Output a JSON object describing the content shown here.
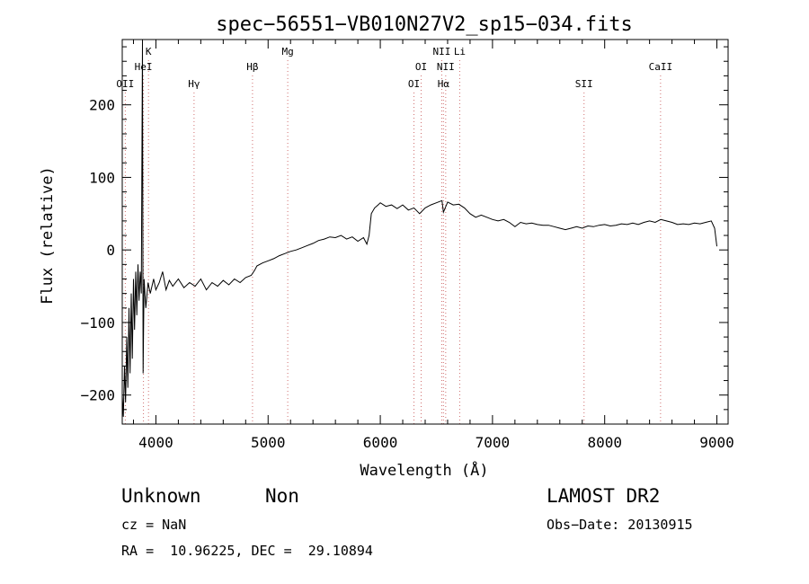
{
  "chart_data": {
    "type": "line",
    "title": "spec−56551−VB010N27V2_sp15−034.fits",
    "xlabel": "Wavelength (Å)",
    "ylabel": "Flux (relative)",
    "xlim": [
      3700,
      9100
    ],
    "ylim": [
      -240,
      290
    ],
    "xticks": [
      {
        "value": 4000,
        "label": "4000"
      },
      {
        "value": 5000,
        "label": "5000"
      },
      {
        "value": 6000,
        "label": "6000"
      },
      {
        "value": 7000,
        "label": "7000"
      },
      {
        "value": 8000,
        "label": "8000"
      },
      {
        "value": 9000,
        "label": "9000"
      }
    ],
    "yticks": [
      {
        "value": 200,
        "label": "200"
      },
      {
        "value": 100,
        "label": "100"
      },
      {
        "value": 0,
        "label": "0"
      },
      {
        "value": -100,
        "label": "−100"
      },
      {
        "value": -200,
        "label": "−200"
      }
    ],
    "grid": false,
    "line_color": "#000000",
    "marker_color": "#d07070",
    "lines": [
      {
        "label": "OII",
        "x": 3727,
        "row": 3
      },
      {
        "label": "K",
        "x": 3934,
        "row": 0
      },
      {
        "label": "HeI",
        "x": 3889,
        "row": 2
      },
      {
        "label": "Hγ",
        "x": 4340,
        "row": 3
      },
      {
        "label": "Hβ",
        "x": 4861,
        "row": 2
      },
      {
        "label": "Mg",
        "x": 5175,
        "row": 0
      },
      {
        "label": "OI",
        "x": 6300,
        "row": 3
      },
      {
        "label": "OI",
        "x": 6364,
        "row": 2
      },
      {
        "label": "NII",
        "x": 6548,
        "row": 0
      },
      {
        "label": "NII",
        "x": 6583,
        "row": 2
      },
      {
        "label": "Hα",
        "x": 6563,
        "row": 3
      },
      {
        "label": "Li",
        "x": 6708,
        "row": 0
      },
      {
        "label": "SII",
        "x": 7816,
        "row": 3
      },
      {
        "label": "CaII",
        "x": 8498,
        "row": 2
      }
    ],
    "spectrum": [
      [
        3700,
        -200
      ],
      [
        3710,
        -230
      ],
      [
        3720,
        -160
      ],
      [
        3730,
        -210
      ],
      [
        3740,
        -120
      ],
      [
        3750,
        -190
      ],
      [
        3760,
        -80
      ],
      [
        3770,
        -170
      ],
      [
        3780,
        -60
      ],
      [
        3790,
        -150
      ],
      [
        3800,
        -40
      ],
      [
        3810,
        -110
      ],
      [
        3820,
        -30
      ],
      [
        3830,
        -90
      ],
      [
        3840,
        -20
      ],
      [
        3850,
        -70
      ],
      [
        3860,
        -30
      ],
      [
        3870,
        -60
      ],
      [
        3880,
        300
      ],
      [
        3886,
        -170
      ],
      [
        3895,
        -40
      ],
      [
        3910,
        -80
      ],
      [
        3930,
        -45
      ],
      [
        3950,
        -60
      ],
      [
        3980,
        -40
      ],
      [
        4000,
        -55
      ],
      [
        4030,
        -45
      ],
      [
        4060,
        -30
      ],
      [
        4090,
        -55
      ],
      [
        4120,
        -42
      ],
      [
        4150,
        -50
      ],
      [
        4200,
        -40
      ],
      [
        4250,
        -52
      ],
      [
        4300,
        -45
      ],
      [
        4350,
        -50
      ],
      [
        4400,
        -40
      ],
      [
        4450,
        -55
      ],
      [
        4500,
        -45
      ],
      [
        4550,
        -50
      ],
      [
        4600,
        -42
      ],
      [
        4650,
        -48
      ],
      [
        4700,
        -40
      ],
      [
        4750,
        -45
      ],
      [
        4800,
        -38
      ],
      [
        4850,
        -35
      ],
      [
        4880,
        -28
      ],
      [
        4900,
        -22
      ],
      [
        4950,
        -18
      ],
      [
        5000,
        -15
      ],
      [
        5050,
        -12
      ],
      [
        5100,
        -8
      ],
      [
        5150,
        -5
      ],
      [
        5200,
        -2
      ],
      [
        5250,
        0
      ],
      [
        5300,
        3
      ],
      [
        5350,
        6
      ],
      [
        5400,
        9
      ],
      [
        5450,
        13
      ],
      [
        5500,
        15
      ],
      [
        5550,
        18
      ],
      [
        5600,
        17
      ],
      [
        5650,
        20
      ],
      [
        5700,
        15
      ],
      [
        5750,
        18
      ],
      [
        5800,
        12
      ],
      [
        5850,
        17
      ],
      [
        5880,
        8
      ],
      [
        5900,
        20
      ],
      [
        5920,
        50
      ],
      [
        5950,
        58
      ],
      [
        5980,
        62
      ],
      [
        6000,
        65
      ],
      [
        6050,
        60
      ],
      [
        6100,
        62
      ],
      [
        6150,
        57
      ],
      [
        6200,
        62
      ],
      [
        6250,
        55
      ],
      [
        6300,
        58
      ],
      [
        6350,
        50
      ],
      [
        6400,
        58
      ],
      [
        6450,
        62
      ],
      [
        6500,
        65
      ],
      [
        6550,
        68
      ],
      [
        6563,
        52
      ],
      [
        6600,
        66
      ],
      [
        6650,
        62
      ],
      [
        6700,
        63
      ],
      [
        6750,
        58
      ],
      [
        6800,
        50
      ],
      [
        6850,
        45
      ],
      [
        6900,
        48
      ],
      [
        6950,
        45
      ],
      [
        7000,
        42
      ],
      [
        7050,
        40
      ],
      [
        7100,
        42
      ],
      [
        7150,
        38
      ],
      [
        7200,
        32
      ],
      [
        7250,
        38
      ],
      [
        7300,
        36
      ],
      [
        7350,
        37
      ],
      [
        7400,
        35
      ],
      [
        7450,
        34
      ],
      [
        7500,
        34
      ],
      [
        7550,
        32
      ],
      [
        7600,
        30
      ],
      [
        7650,
        28
      ],
      [
        7700,
        30
      ],
      [
        7750,
        32
      ],
      [
        7800,
        30
      ],
      [
        7850,
        33
      ],
      [
        7900,
        32
      ],
      [
        7950,
        34
      ],
      [
        8000,
        35
      ],
      [
        8050,
        33
      ],
      [
        8100,
        34
      ],
      [
        8150,
        36
      ],
      [
        8200,
        35
      ],
      [
        8250,
        37
      ],
      [
        8300,
        35
      ],
      [
        8350,
        38
      ],
      [
        8400,
        40
      ],
      [
        8450,
        38
      ],
      [
        8500,
        42
      ],
      [
        8550,
        40
      ],
      [
        8600,
        38
      ],
      [
        8650,
        35
      ],
      [
        8700,
        36
      ],
      [
        8750,
        35
      ],
      [
        8800,
        37
      ],
      [
        8850,
        36
      ],
      [
        8900,
        38
      ],
      [
        8950,
        40
      ],
      [
        8980,
        30
      ],
      [
        9000,
        5
      ]
    ]
  },
  "info": {
    "class": "Unknown",
    "subclass": "Non",
    "survey": "LAMOST DR2",
    "cz": "cz = NaN",
    "obs_date": "Obs−Date: 20130915",
    "coords": "RA =  10.96225, DEC =  29.10894"
  }
}
